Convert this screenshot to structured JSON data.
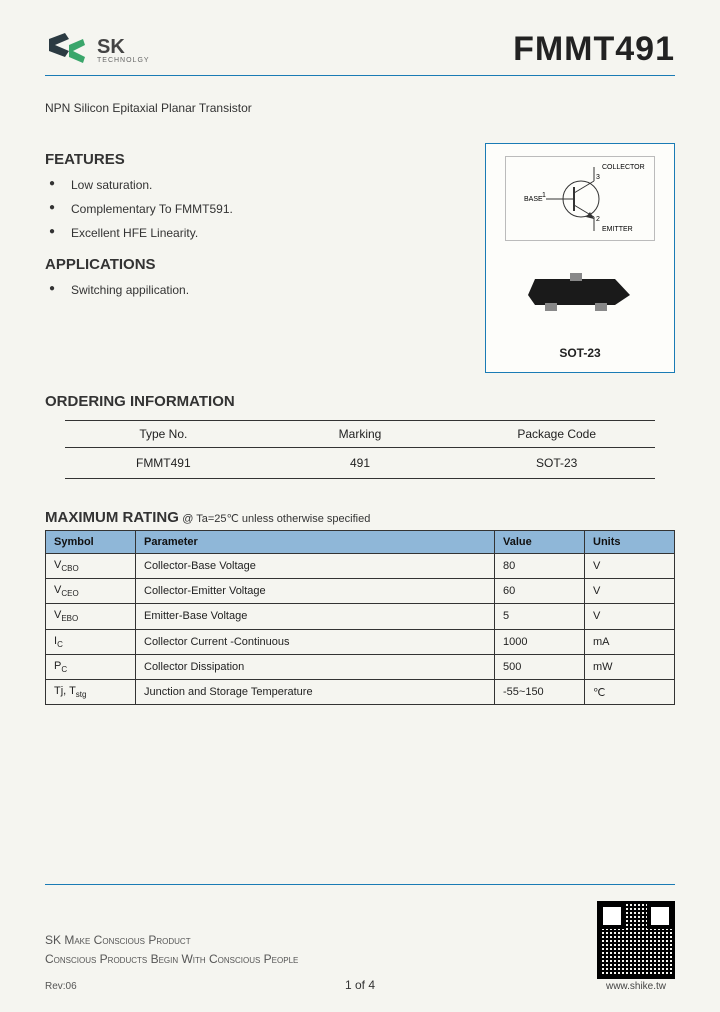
{
  "header": {
    "logo_sk": "SK",
    "logo_sub": "TECHNOLGY",
    "part_number": "FMMT491"
  },
  "subtitle": "NPN Silicon Epitaxial Planar Transistor",
  "features": {
    "heading": "FEATURES",
    "items": [
      "Low saturation.",
      "Complementary To FMMT591.",
      "Excellent HFE Linearity."
    ]
  },
  "applications": {
    "heading": "APPLICATIONS",
    "items": [
      "Switching appilication."
    ]
  },
  "package": {
    "collector": "COLLECTOR",
    "base": "BASE",
    "emitter": "EMITTER",
    "pin1": "1",
    "pin2": "2",
    "pin3": "3",
    "label": "SOT-23"
  },
  "ordering": {
    "heading": "ORDERING INFORMATION",
    "headers": [
      "Type No.",
      "Marking",
      "Package Code"
    ],
    "row": [
      "FMMT491",
      "491",
      "SOT-23"
    ]
  },
  "rating": {
    "heading": "MAXIMUM RATING",
    "note": "@ Ta=25℃ unless otherwise specified",
    "headers": [
      "Symbol",
      "Parameter",
      "Value",
      "Units"
    ],
    "rows": [
      {
        "sym": "V",
        "sub": "CBO",
        "param": "Collector-Base Voltage",
        "value": "80",
        "units": "V"
      },
      {
        "sym": "V",
        "sub": "CEO",
        "param": "Collector-Emitter Voltage",
        "value": "60",
        "units": "V"
      },
      {
        "sym": "V",
        "sub": "EBO",
        "param": "Emitter-Base Voltage",
        "value": "5",
        "units": "V"
      },
      {
        "sym": "I",
        "sub": "C",
        "param": "Collector Current -Continuous",
        "value": "1000",
        "units": "mA"
      },
      {
        "sym": "P",
        "sub": "C",
        "param": "Collector Dissipation",
        "value": "500",
        "units": "mW"
      },
      {
        "sym": "Tj, T",
        "sub": "stg",
        "param": "Junction and Storage Temperature",
        "value": "-55~150",
        "units": "℃"
      }
    ]
  },
  "footer": {
    "line1": "SK Make Conscious Product",
    "line2": "Conscious Products Begin With Conscious People",
    "rev": "Rev:06",
    "qr_url": "www.shike.tw",
    "page": "1 of 4"
  },
  "colors": {
    "rule": "#1a7bb5",
    "table_header_bg": "#8fb7d8",
    "bg": "#f5f5f0"
  }
}
